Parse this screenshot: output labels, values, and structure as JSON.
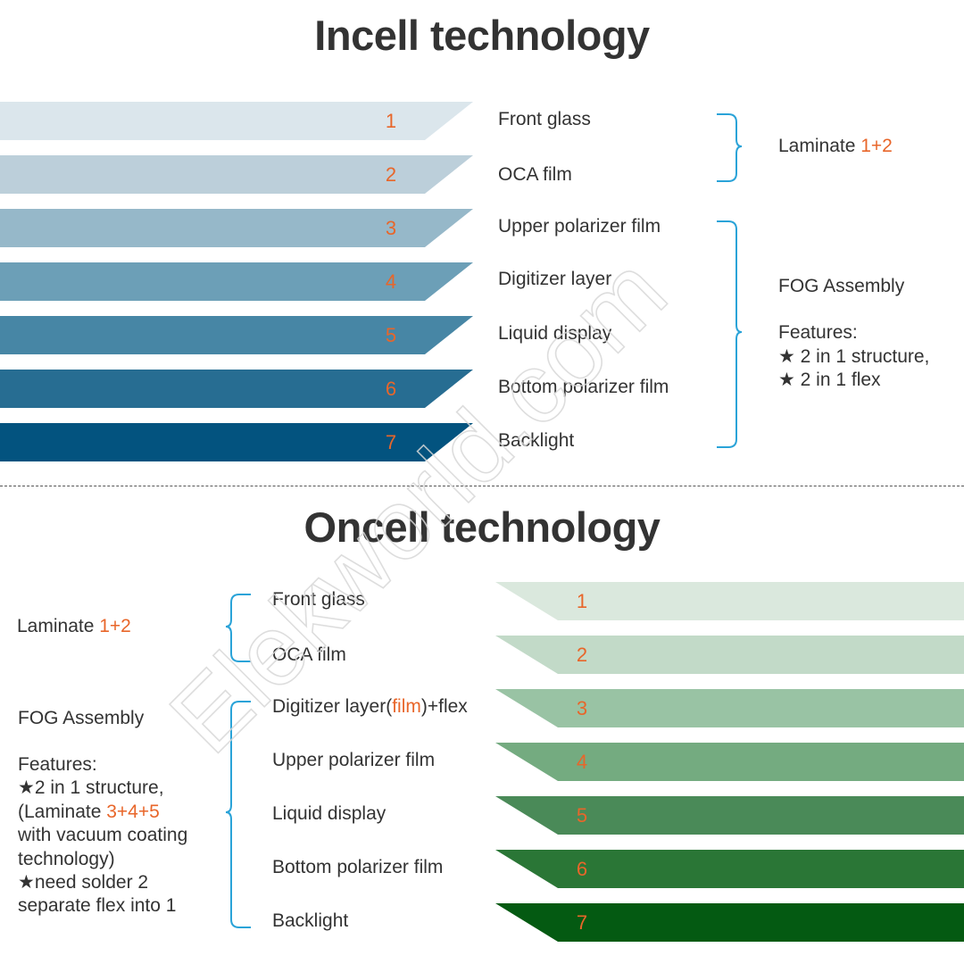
{
  "colors": {
    "accent": "#e8662a",
    "bracket": "#2aa3d8",
    "incell_layers": [
      "#dbe6ec",
      "#bccfda",
      "#96b8c9",
      "#6c9fb7",
      "#4786a5",
      "#276d92",
      "#03537f"
    ],
    "oncell_layers": [
      "#dae8dd",
      "#c2dac8",
      "#99c3a4",
      "#74ab80",
      "#4a8a58",
      "#2a7636",
      "#045a12"
    ]
  },
  "incell": {
    "title": "Incell technology",
    "layers": [
      {
        "num": "1",
        "label": "Front glass"
      },
      {
        "num": "2",
        "label": "OCA film"
      },
      {
        "num": "3",
        "label": "Upper polarizer film"
      },
      {
        "num": "4",
        "label": "Digitizer layer"
      },
      {
        "num": "5",
        "label": "Liquid display"
      },
      {
        "num": "6",
        "label": "Bottom polarizer film"
      },
      {
        "num": "7",
        "label": "Backlight"
      }
    ],
    "laminate": {
      "text": "Laminate ",
      "value": "1+2"
    },
    "fog": {
      "title": "FOG Assembly",
      "features_label": "Features:",
      "features": [
        "★ 2 in 1 structure,",
        "★ 2 in 1 flex"
      ]
    }
  },
  "oncell": {
    "title": "Oncell technology",
    "layers": [
      {
        "num": "1",
        "label": "Front glass"
      },
      {
        "num": "2",
        "label": "OCA film"
      },
      {
        "num": "3",
        "label": "Digitizer layer(",
        "label_accent": "film",
        "label_suffix": ")+flex"
      },
      {
        "num": "4",
        "label": "Upper polarizer film"
      },
      {
        "num": "5",
        "label": "Liquid display"
      },
      {
        "num": "6",
        "label": "Bottom polarizer film"
      },
      {
        "num": "7",
        "label": "Backlight"
      }
    ],
    "laminate": {
      "text": "Laminate ",
      "value": "1+2"
    },
    "fog": {
      "title": "FOG Assembly",
      "features_label": "Features:",
      "line1": "★2 in 1 structure,",
      "line2_prefix": "(Laminate ",
      "line2_accent": "3+4+5",
      "line3": "with vacuum coating",
      "line4": "technology)",
      "line5": "★need solder 2",
      "line6": "separate flex into 1"
    }
  },
  "watermark": "Elekworld.com"
}
